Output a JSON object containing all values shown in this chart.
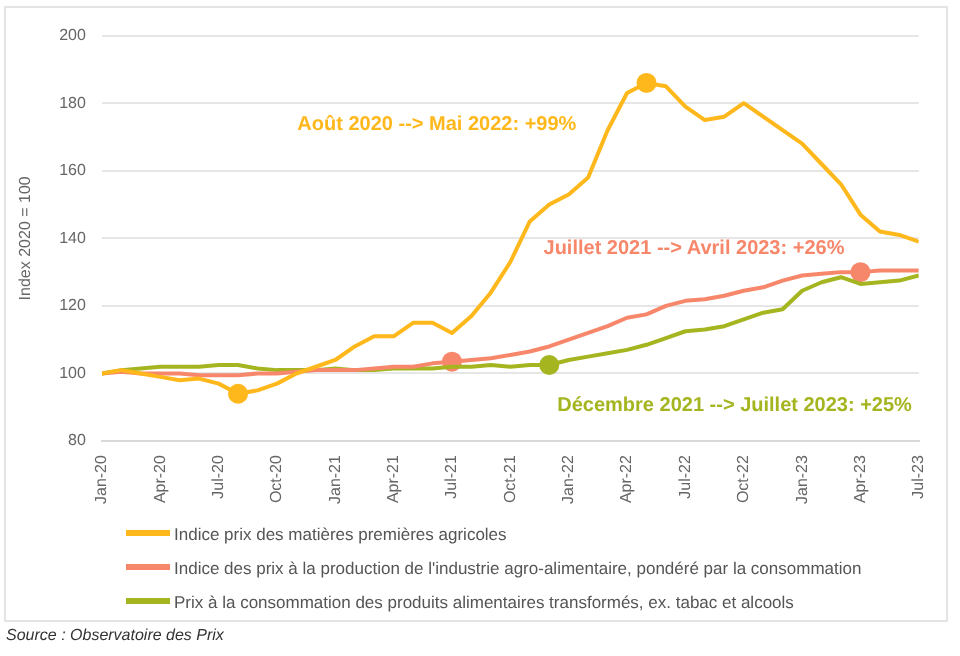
{
  "chart_data": {
    "type": "line",
    "ylabel": "Index 2020 = 100",
    "x": [
      "2020-01",
      "2020-02",
      "2020-03",
      "2020-04",
      "2020-05",
      "2020-06",
      "2020-07",
      "2020-08",
      "2020-09",
      "2020-10",
      "2020-11",
      "2020-12",
      "2021-01",
      "2021-02",
      "2021-03",
      "2021-04",
      "2021-05",
      "2021-06",
      "2021-07",
      "2021-08",
      "2021-09",
      "2021-10",
      "2021-11",
      "2021-12",
      "2022-01",
      "2022-02",
      "2022-03",
      "2022-04",
      "2022-05",
      "2022-06",
      "2022-07",
      "2022-08",
      "2022-09",
      "2022-10",
      "2022-11",
      "2022-12",
      "2023-01",
      "2023-02",
      "2023-03",
      "2023-04",
      "2023-05",
      "2023-06",
      "2023-07"
    ],
    "series": [
      {
        "name": "Indice prix des matières premières agricoles",
        "color": "#ffb81c",
        "values": [
          100,
          101,
          100,
          99,
          98,
          98.5,
          97,
          94,
          95,
          97,
          100,
          102,
          104,
          108,
          111,
          111,
          115,
          115,
          112,
          117,
          124,
          133,
          145,
          150,
          153,
          158,
          172,
          183,
          186,
          185,
          179,
          175,
          176,
          180,
          176,
          172,
          168,
          162,
          156,
          147,
          142,
          141,
          139
        ]
      },
      {
        "name": "Indice des prix à la production de l'industrie agro-alimentaire, pondéré par la consommation",
        "color": "#f7876b",
        "values": [
          100,
          100.5,
          100,
          100,
          100,
          99.5,
          99.5,
          99.5,
          100,
          100,
          100.5,
          101,
          101,
          101,
          101.5,
          102,
          102,
          103,
          103.5,
          104,
          104.5,
          105.5,
          106.5,
          108,
          110,
          112,
          114,
          116.5,
          117.5,
          120,
          121.5,
          122,
          123,
          124.5,
          125.5,
          127.5,
          129,
          129.5,
          130,
          130,
          130.5,
          130.5,
          130.5
        ]
      },
      {
        "name": "Prix à la consommation des produits alimentaires transformés, ex. tabac et alcools",
        "color": "#a5b520",
        "values": [
          100,
          101,
          101.5,
          102,
          102,
          102,
          102.5,
          102.5,
          101.5,
          101,
          101,
          101,
          101.5,
          101,
          101,
          101.5,
          101.5,
          101.5,
          102,
          102,
          102.5,
          102,
          102.5,
          102.5,
          104,
          105,
          106,
          107,
          108.5,
          110.5,
          112.5,
          113,
          114,
          116,
          118,
          119,
          124.5,
          127,
          128.5,
          126.5,
          127,
          127.5,
          129
        ]
      },
      {
        "type": "scatter",
        "marker": "circle",
        "color": "#ffb81c",
        "x": [
          "2020-08",
          "2022-05"
        ],
        "values": [
          94,
          186
        ]
      },
      {
        "type": "scatter",
        "marker": "circle",
        "color": "#f7876b",
        "x": [
          "2021-07",
          "2023-04"
        ],
        "values": [
          103.5,
          130
        ]
      },
      {
        "type": "scatter",
        "marker": "circle",
        "color": "#a5b520",
        "x": [
          "2021-12"
        ],
        "values": [
          102.5
        ]
      }
    ],
    "xlim": [
      "2020-01",
      "2023-07"
    ],
    "xticks": [
      {
        "value": "2020-01",
        "label": "Jan-20"
      },
      {
        "value": "2020-04",
        "label": "Apr-20"
      },
      {
        "value": "2020-07",
        "label": "Jul-20"
      },
      {
        "value": "2020-10",
        "label": "Oct-20"
      },
      {
        "value": "2021-01",
        "label": "Jan-21"
      },
      {
        "value": "2021-04",
        "label": "Apr-21"
      },
      {
        "value": "2021-07",
        "label": "Jul-21"
      },
      {
        "value": "2021-10",
        "label": "Oct-21"
      },
      {
        "value": "2022-01",
        "label": "Jan-22"
      },
      {
        "value": "2022-04",
        "label": "Apr-22"
      },
      {
        "value": "2022-07",
        "label": "Jul-22"
      },
      {
        "value": "2022-10",
        "label": "Oct-22"
      },
      {
        "value": "2023-01",
        "label": "Jan-23"
      },
      {
        "value": "2023-04",
        "label": "Apr-23"
      },
      {
        "value": "2023-07",
        "label": "Jul-23"
      }
    ],
    "ylim": [
      80,
      200
    ],
    "yticks": [
      80,
      100,
      120,
      140,
      160,
      180,
      200
    ],
    "grid": "y",
    "legend": "bottom",
    "line_style": "solid",
    "annotations": [
      "Août 2020 --> Mai 2022: +99%",
      {
        "text": "Juillet 2021 --> Avril 2023: +26%",
        "x": "2023-04",
        "y": 130
      },
      {
        "text": "Décembre 2021 --> Juillet 2023: +25%",
        "x": "2021-12",
        "y": 102.5
      },
      "Source : Observatoire des Prix"
    ]
  }
}
